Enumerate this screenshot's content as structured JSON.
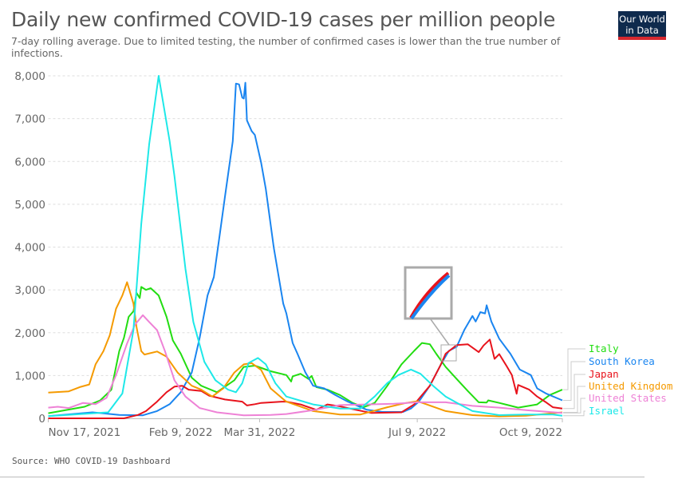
{
  "header": {
    "title": "Daily new confirmed COVID-19 cases per million people",
    "subtitle": "7-day rolling average. Due to limited testing, the number of confirmed cases is lower than the true number of infections.",
    "logo_text": "Our World in Data"
  },
  "footer": {
    "source": "Source: WHO COVID-19 Dashboard"
  },
  "chart_data": {
    "type": "line",
    "title": "Daily new confirmed COVID-19 cases per million people",
    "xlabel": "",
    "ylabel": "",
    "x_unit": "days since Nov 17, 2021",
    "xlim": [
      0,
      326
    ],
    "ylim": [
      0,
      8000
    ],
    "yticks": [
      0,
      1000,
      2000,
      3000,
      4000,
      5000,
      6000,
      7000,
      8000
    ],
    "ytick_labels": [
      "0",
      "1,000",
      "2,000",
      "3,000",
      "4,000",
      "5,000",
      "6,000",
      "7,000",
      "8,000"
    ],
    "xticks": [
      0,
      84,
      134,
      234,
      326
    ],
    "xtick_labels": [
      "Nov 17, 2021",
      "Feb 9, 2022",
      "Mar 31, 2022",
      "Jul 9, 2022",
      "Oct 9, 2022"
    ],
    "grid": "horizontal dashed",
    "legend_placement": "right",
    "series": [
      {
        "name": "Italy",
        "color": "#22dd11",
        "x": [
          0,
          23,
          33,
          40,
          45,
          48,
          51,
          54,
          56,
          58,
          59,
          62,
          65,
          70,
          75,
          79,
          84,
          91,
          97,
          107,
          118,
          124,
          131,
          141,
          151,
          154,
          155,
          160,
          165,
          167,
          170,
          177,
          185,
          193,
          200,
          207,
          215,
          224,
          232,
          237,
          242,
          246,
          252,
          259,
          266,
          273,
          278,
          279,
          286,
          298,
          310,
          318,
          326
        ],
        "y": [
          120,
          270,
          420,
          670,
          1570,
          1880,
          2370,
          2500,
          2930,
          2810,
          3070,
          3000,
          3040,
          2870,
          2370,
          1820,
          1510,
          950,
          760,
          610,
          890,
          1200,
          1230,
          1100,
          1010,
          860,
          980,
          1040,
          920,
          990,
          730,
          670,
          545,
          360,
          260,
          360,
          760,
          1260,
          1575,
          1760,
          1730,
          1510,
          1200,
          920,
          640,
          375,
          370,
          420,
          360,
          250,
          325,
          545,
          670
        ]
      },
      {
        "name": "South Korea",
        "color": "#1a85f0",
        "x": [
          0,
          28,
          45,
          60,
          69,
          77,
          84,
          91,
          96,
          101,
          105,
          109,
          112,
          117,
          118,
          119,
          121,
          123,
          124,
          125,
          126,
          129,
          131,
          135,
          138,
          143,
          149,
          151,
          155,
          158,
          163,
          168,
          175,
          182,
          190,
          202,
          212,
          225,
          230,
          235,
          242,
          249,
          254,
          259,
          264,
          269,
          271,
          274,
          277,
          278,
          281,
          286,
          293,
          299,
          306,
          310,
          316,
          326
        ],
        "y": [
          50,
          140,
          80,
          70,
          170,
          330,
          610,
          1070,
          1880,
          2870,
          3300,
          4360,
          5160,
          6470,
          7150,
          7820,
          7800,
          7490,
          7470,
          7840,
          6960,
          6710,
          6620,
          5970,
          5350,
          3990,
          2680,
          2450,
          1760,
          1510,
          1075,
          760,
          700,
          545,
          390,
          200,
          150,
          150,
          230,
          390,
          760,
          1260,
          1575,
          1670,
          2075,
          2390,
          2260,
          2480,
          2450,
          2640,
          2260,
          1860,
          1510,
          1140,
          1010,
          700,
          575,
          420
        ]
      },
      {
        "name": "Japan",
        "color": "#e8131c",
        "x": [
          0,
          48,
          57,
          62,
          69,
          75,
          80,
          85,
          89,
          97,
          102,
          112,
          123,
          126,
          131,
          135,
          148,
          151,
          160,
          170,
          177,
          185,
          195,
          205,
          224,
          232,
          242,
          249,
          252,
          259,
          266,
          273,
          276,
          280,
          283,
          286,
          291,
          294,
          297,
          298,
          305,
          310,
          315,
          320,
          326
        ],
        "y": [
          0,
          0,
          80,
          170,
          390,
          610,
          740,
          760,
          670,
          640,
          530,
          440,
          390,
          300,
          330,
          360,
          390,
          390,
          325,
          200,
          325,
          280,
          200,
          125,
          140,
          325,
          760,
          1260,
          1510,
          1710,
          1730,
          1545,
          1700,
          1840,
          1390,
          1500,
          1200,
          1010,
          575,
          780,
          670,
          510,
          390,
          260,
          230
        ]
      },
      {
        "name": "United Kingdom",
        "color": "#f59a00",
        "x": [
          0,
          13,
          20,
          26,
          30,
          35,
          39,
          43,
          47,
          50,
          54,
          56,
          59,
          61,
          69,
          75,
          82,
          91,
          97,
          104,
          111,
          118,
          124,
          129,
          135,
          141,
          148,
          151,
          168,
          185,
          198,
          215,
          227,
          234,
          240,
          252,
          269,
          286,
          303,
          326
        ],
        "y": [
          600,
          630,
          730,
          790,
          1260,
          1570,
          1940,
          2560,
          2870,
          3180,
          2680,
          2130,
          1570,
          1490,
          1560,
          1440,
          1070,
          760,
          670,
          510,
          700,
          1070,
          1260,
          1290,
          1130,
          700,
          480,
          390,
          170,
          90,
          90,
          260,
          360,
          400,
          325,
          170,
          75,
          45,
          60,
          140
        ]
      },
      {
        "name": "United States",
        "color": "#ee82d6",
        "x": [
          0,
          6,
          13,
          22,
          30,
          37,
          43,
          50,
          55,
          60,
          64,
          69,
          74,
          80,
          87,
          96,
          107,
          124,
          141,
          151,
          168,
          185,
          202,
          219,
          235,
          252,
          269,
          286,
          303,
          326
        ],
        "y": [
          250,
          270,
          240,
          360,
          330,
          480,
          1010,
          1750,
          2190,
          2410,
          2250,
          2060,
          1570,
          890,
          510,
          240,
          140,
          70,
          80,
          100,
          190,
          310,
          325,
          340,
          375,
          375,
          290,
          250,
          190,
          125
        ]
      },
      {
        "name": "Israel",
        "color": "#1ee8e8",
        "x": [
          0,
          38,
          47,
          54,
          59,
          64,
          70,
          77,
          80,
          87,
          92,
          99,
          106,
          114,
          119,
          123,
          127,
          133,
          138,
          144,
          151,
          168,
          185,
          198,
          207,
          215,
          222,
          230,
          236,
          244,
          252,
          261,
          269,
          286,
          303,
          320,
          326
        ],
        "y": [
          50,
          140,
          580,
          2060,
          4540,
          6400,
          8000,
          6470,
          5660,
          3490,
          2250,
          1320,
          890,
          670,
          610,
          820,
          1290,
          1410,
          1260,
          820,
          510,
          325,
          230,
          230,
          510,
          825,
          1010,
          1140,
          1040,
          760,
          510,
          325,
          170,
          75,
          90,
          90,
          60
        ]
      }
    ]
  }
}
